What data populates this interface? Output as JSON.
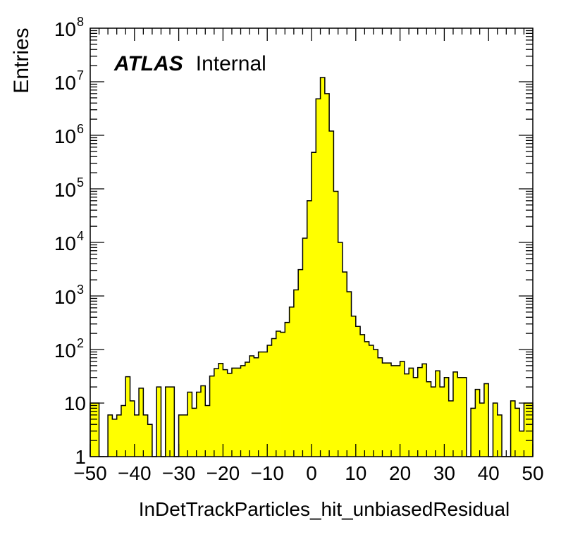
{
  "chart_data": {
    "type": "bar",
    "title": "",
    "xlabel": "InDetTrackParticles_hit_unbiasedResidual",
    "ylabel": "Entries",
    "xlim": [
      -50,
      50
    ],
    "ylim": [
      1,
      100000000
    ],
    "yscale": "log",
    "grid": false,
    "bar_color": "#ffff00",
    "edge_color": "#000000",
    "annotation": {
      "bold": "ATLAS",
      "normal": "Internal"
    },
    "x_ticks": [
      {
        "value": -50,
        "label": "−50"
      },
      {
        "value": -40,
        "label": "−40"
      },
      {
        "value": -30,
        "label": "−30"
      },
      {
        "value": -20,
        "label": "−20"
      },
      {
        "value": -10,
        "label": "−10"
      },
      {
        "value": 0,
        "label": "0"
      },
      {
        "value": 10,
        "label": "10"
      },
      {
        "value": 20,
        "label": "20"
      },
      {
        "value": 30,
        "label": "30"
      },
      {
        "value": 40,
        "label": "40"
      },
      {
        "value": 50,
        "label": "50"
      }
    ],
    "y_ticks": [
      {
        "value": 1,
        "label": "1"
      },
      {
        "value": 10,
        "label": "10"
      },
      {
        "value": 100,
        "label": "10",
        "exp": "2"
      },
      {
        "value": 1000,
        "label": "10",
        "exp": "3"
      },
      {
        "value": 10000,
        "label": "10",
        "exp": "4"
      },
      {
        "value": 100000,
        "label": "10",
        "exp": "5"
      },
      {
        "value": 1000000,
        "label": "10",
        "exp": "6"
      },
      {
        "value": 10000000,
        "label": "10",
        "exp": "7"
      },
      {
        "value": 100000000,
        "label": "10",
        "exp": "8"
      }
    ],
    "bin_edges": [
      -50,
      50
    ],
    "bin_width": 1,
    "values": [
      10,
      10,
      0,
      0,
      6,
      5,
      6,
      9,
      31,
      11,
      6,
      19,
      6,
      4,
      0,
      20,
      0,
      20,
      20,
      0,
      6,
      6,
      16,
      8,
      16,
      21,
      9,
      32,
      44,
      55,
      42,
      36,
      45,
      45,
      50,
      58,
      76,
      70,
      90,
      90,
      120,
      160,
      220,
      210,
      320,
      620,
      1300,
      3100,
      12000,
      60000,
      480000,
      4800000,
      12000000,
      6000000,
      1200000,
      90000,
      10000,
      2800,
      1200,
      420,
      270,
      190,
      140,
      120,
      100,
      70,
      56,
      56,
      50,
      50,
      60,
      35,
      45,
      30,
      46,
      54,
      25,
      20,
      40,
      20,
      30,
      11,
      38,
      30,
      30,
      1,
      8,
      18,
      10,
      23,
      1,
      10,
      6,
      1,
      1,
      11,
      8,
      3,
      10,
      10
    ]
  }
}
